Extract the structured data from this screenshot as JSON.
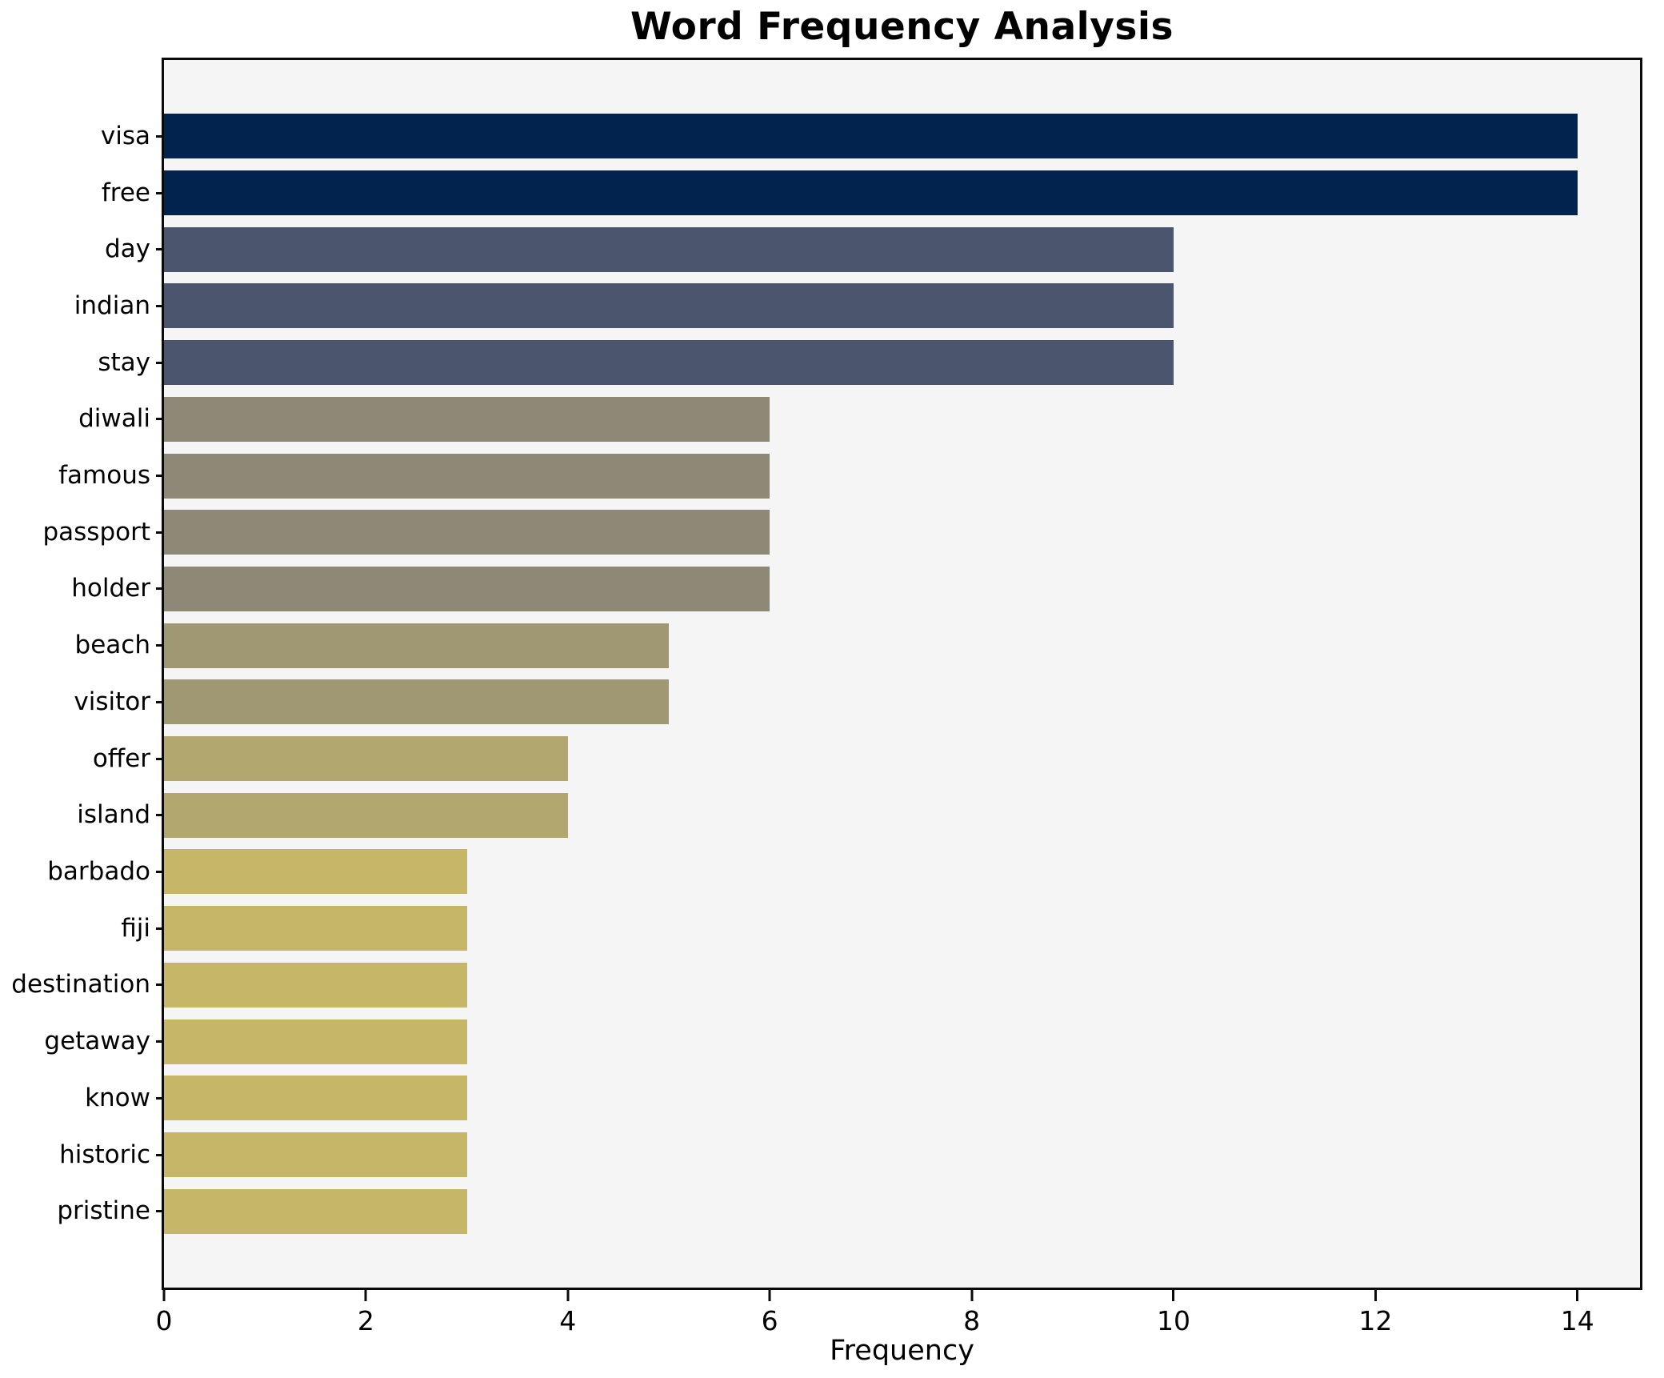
{
  "chart": {
    "title": "Word Frequency Analysis",
    "xlabel": "Frequency"
  },
  "chart_data": {
    "type": "bar",
    "orientation": "horizontal",
    "title": "Word Frequency Analysis",
    "xlabel": "Frequency",
    "ylabel": "",
    "categories": [
      "visa",
      "free",
      "day",
      "indian",
      "stay",
      "diwali",
      "famous",
      "passport",
      "holder",
      "beach",
      "visitor",
      "offer",
      "island",
      "barbado",
      "fiji",
      "destination",
      "getaway",
      "know",
      "historic",
      "pristine"
    ],
    "values": [
      14,
      14,
      10,
      10,
      10,
      6,
      6,
      6,
      6,
      5,
      5,
      4,
      4,
      3,
      3,
      3,
      3,
      3,
      3,
      3
    ],
    "bar_colors": [
      "#02234d",
      "#02234d",
      "#4c556e",
      "#4c556e",
      "#4c556e",
      "#8e8977",
      "#8e8977",
      "#8e8977",
      "#8e8977",
      "#a09873",
      "#a09873",
      "#b2a76f",
      "#b2a76f",
      "#c6b667",
      "#c6b667",
      "#c6b667",
      "#c6b667",
      "#c6b667",
      "#c6b667",
      "#c6b667"
    ],
    "x_ticks": [
      0,
      2,
      4,
      6,
      8,
      10,
      12,
      14
    ],
    "xlim": [
      0,
      14.62
    ],
    "grid": false,
    "legend": false,
    "plot_background": "#f5f5f6",
    "axis_color": "#0a0a0a"
  }
}
